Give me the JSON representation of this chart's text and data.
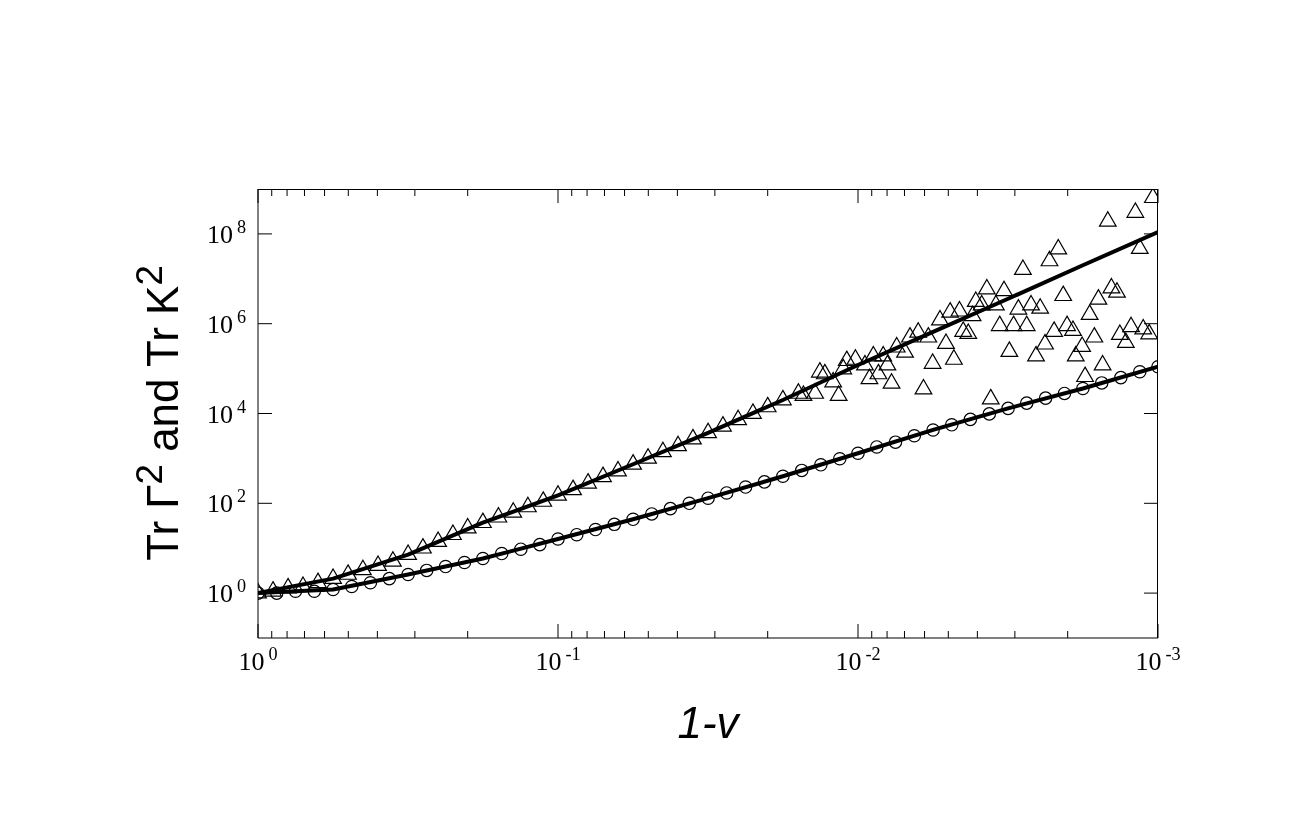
{
  "chart_data": {
    "type": "scatter",
    "xlabel": "1-v",
    "ylabel": "Tr Γ$^{2}$ and Tr K$^{2}$",
    "log": "xy",
    "xlim": [
      1,
      0.001
    ],
    "ylim": [
      0.1,
      1000000000
    ],
    "xticks": [
      {
        "value": 1,
        "label": "10$^{0}$"
      },
      {
        "value": 0.9,
        "label": null
      },
      {
        "value": 0.8,
        "label": null
      },
      {
        "value": 0.7,
        "label": null
      },
      {
        "value": 0.6,
        "label": null
      },
      {
        "value": 0.5,
        "label": null
      },
      {
        "value": 0.4,
        "label": null
      },
      {
        "value": 0.3,
        "label": null
      },
      {
        "value": 0.2,
        "label": null
      },
      {
        "value": 0.1,
        "label": "10$^{-1}$"
      },
      {
        "value": 0.09,
        "label": null
      },
      {
        "value": 0.08,
        "label": null
      },
      {
        "value": 0.07,
        "label": null
      },
      {
        "value": 0.06,
        "label": null
      },
      {
        "value": 0.05,
        "label": null
      },
      {
        "value": 0.04,
        "label": null
      },
      {
        "value": 0.03,
        "label": null
      },
      {
        "value": 0.02,
        "label": null
      },
      {
        "value": 0.01,
        "label": "10$^{-2}$"
      },
      {
        "value": 0.009,
        "label": null
      },
      {
        "value": 0.008,
        "label": null
      },
      {
        "value": 0.007,
        "label": null
      },
      {
        "value": 0.006,
        "label": null
      },
      {
        "value": 0.005,
        "label": null
      },
      {
        "value": 0.004,
        "label": null
      },
      {
        "value": 0.003,
        "label": null
      },
      {
        "value": 0.002,
        "label": null
      },
      {
        "value": 0.001,
        "label": "10$^{-3}$"
      }
    ],
    "yticks": [
      {
        "value": 1,
        "label": "10$^{0}$"
      },
      {
        "value": 100,
        "label": "10$^{2}$"
      },
      {
        "value": 10000,
        "label": "10$^{4}$"
      },
      {
        "value": 1000000,
        "label": "10$^{6}$"
      },
      {
        "value": 100000000,
        "label": "10$^{8}$"
      }
    ],
    "series": [
      {
        "marker": "circle",
        "color": "#000000",
        "x": [
          1,
          0.866,
          0.75,
          0.649,
          0.562,
          0.487,
          0.422,
          0.365,
          0.316,
          0.274,
          0.237,
          0.205,
          0.178,
          0.154,
          0.133,
          0.115,
          0.1,
          0.0866,
          0.075,
          0.0649,
          0.0562,
          0.0487,
          0.0422,
          0.0365,
          0.0316,
          0.0274,
          0.0237,
          0.0205,
          0.0178,
          0.0154,
          0.0133,
          0.0115,
          0.01,
          0.00866,
          0.0075,
          0.00649,
          0.00562,
          0.00487,
          0.00422,
          0.00365,
          0.00316,
          0.00274,
          0.00237,
          0.00205,
          0.00178,
          0.00154,
          0.00133,
          0.00115,
          0.001
        ],
        "values": [
          1,
          1,
          1.1,
          1.1,
          1.2,
          1.4,
          1.7,
          2.1,
          2.6,
          3.2,
          3.9,
          4.8,
          5.9,
          7.6,
          9.5,
          12,
          16,
          20,
          26,
          34,
          44,
          58,
          76,
          100,
          130,
          170,
          230,
          300,
          400,
          540,
          720,
          980,
          1300,
          1800,
          2300,
          3200,
          4300,
          5600,
          7400,
          9800,
          13000,
          17000,
          22000,
          28000,
          36000,
          48000,
          63000,
          85000,
          110000
        ]
      },
      {
        "marker": "triangle",
        "color": "#000000",
        "x": [
          1,
          0.891,
          0.794,
          0.708,
          0.631,
          0.562,
          0.501,
          0.447,
          0.398,
          0.355,
          0.316,
          0.282,
          0.251,
          0.224,
          0.2,
          0.178,
          0.158,
          0.141,
          0.126,
          0.112,
          0.1,
          0.0891,
          0.0794,
          0.0708,
          0.0631,
          0.0562,
          0.0501,
          0.0447,
          0.0398,
          0.0355,
          0.0316,
          0.0282,
          0.0251,
          0.0224,
          0.02,
          0.0178,
          0.0158,
          0.00104,
          0.00119,
          0.00147,
          0.00115,
          0.00215,
          0.0023,
          0.00282,
          0.00372,
          0.00326,
          0.00405,
          0.00387,
          0.00347,
          0.00493,
          0.00459,
          0.00415,
          0.00292,
          0.00265,
          0.00247,
          0.00207,
          0.00158,
          0.00143,
          0.00137,
          0.00169,
          0.00337,
          0.00303,
          0.00274,
          0.00222,
          0.00201,
          0.00192,
          0.00163,
          0.00134,
          0.00123,
          0.00112,
          0.00107,
          0.00128,
          0.00238,
          0.00179,
          0.00313,
          0.00255,
          0.00188,
          0.00153,
          0.00175,
          0.00361,
          0.00605,
          0.00564,
          0.00479,
          0.00509,
          0.00446,
          0.00429,
          0.00533,
          0.00583,
          0.0063,
          0.00671,
          0.00743,
          0.00697,
          0.00773,
          0.00798,
          0.00855,
          0.00916,
          0.00824,
          0.00889,
          0.0102,
          0.0109,
          0.00948,
          0.0121,
          0.0116,
          0.0134,
          0.0129,
          0.0139,
          0.0152,
          0.0112
        ],
        "values": [
          1,
          1.1,
          1.3,
          1.4,
          1.7,
          2.1,
          2.6,
          3.3,
          4.1,
          5.1,
          7.2,
          10,
          14,
          20,
          28,
          37,
          49,
          63,
          83,
          110,
          150,
          200,
          280,
          390,
          520,
          740,
          1000,
          1400,
          1900,
          2700,
          3700,
          5200,
          7200,
          10000,
          14000,
          20000,
          28000,
          640000000,
          300000000,
          190000000,
          47000000,
          46000000,
          25000000,
          16000000,
          5900000,
          5400000,
          3100000,
          2600000,
          2600000,
          1800000,
          1900000,
          1500000,
          2100000,
          2600000,
          2200000,
          4200000,
          3500000,
          6200000,
          5000000,
          1600000,
          900000,
          900000,
          900000,
          670000,
          900000,
          700000,
          500000,
          570000,
          850000,
          760000,
          590000,
          380000,
          350000,
          310000,
          240000,
          190000,
          190000,
          120000,
          66000,
          21000,
          35000,
          130000,
          160000,
          360000,
          670000,
          600000,
          1200000,
          500000,
          640000,
          500000,
          300000,
          230000,
          47000,
          120000,
          76000,
          59000,
          190000,
          190000,
          160000,
          150000,
          120000,
          50000,
          25000,
          83000,
          76000,
          28000,
          25000,
          98000
        ]
      },
      {
        "type": "line",
        "marker": "none",
        "color": "#000000",
        "x": [
          1,
          0.562,
          0.316,
          0.178,
          0.1,
          0.0562,
          0.0316,
          0.0178,
          0.01,
          0.00562,
          0.00316,
          0.00178,
          0.001
        ],
        "values": [
          1,
          1.2,
          2.6,
          5.9,
          16,
          44,
          130,
          400,
          1300,
          4300,
          13000,
          36000,
          110000
        ]
      },
      {
        "type": "line",
        "marker": "none",
        "color": "#000000",
        "x": [
          1,
          0.562,
          0.316,
          0.178,
          0.1,
          0.0562,
          0.0316,
          0.0178,
          0.01,
          0.00562,
          0.00316,
          0.00178,
          0.001
        ],
        "values": [
          1,
          2.1,
          7.2,
          37,
          150,
          740,
          3700,
          20000,
          120000,
          660000,
          3600000,
          20000000,
          110000000
        ]
      }
    ]
  }
}
